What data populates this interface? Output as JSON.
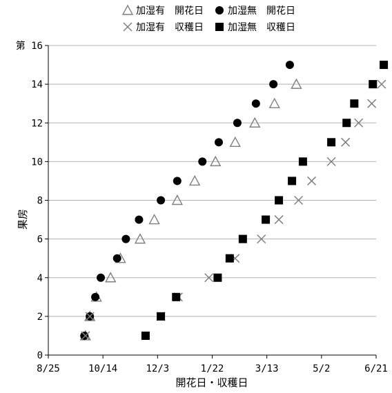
{
  "chart_data": {
    "type": "scatter",
    "title": "",
    "xlabel": "開花日・収穫日",
    "ylabel": "果房",
    "y_top_prefix": "第",
    "xticks": [
      "8/25",
      "10/14",
      "12/3",
      "1/22",
      "3/13",
      "5/2",
      "6/21"
    ],
    "xtick_days": [
      0,
      50,
      100,
      150,
      200,
      250,
      300
    ],
    "yticks": [
      0,
      2,
      4,
      6,
      8,
      10,
      12,
      14,
      16
    ],
    "xlim_days": [
      0,
      300
    ],
    "ylim": [
      0,
      16
    ],
    "x_unit": "days since 8/25",
    "grid": "horizontal",
    "legend_position": "top",
    "series": [
      {
        "name": "加湿有　開花日",
        "marker": "triangle-open",
        "color": "#7f7f7f",
        "points": [
          [
            34,
            1
          ],
          [
            38,
            2
          ],
          [
            44,
            3
          ],
          [
            57,
            4
          ],
          [
            66,
            5
          ],
          [
            84,
            6
          ],
          [
            97,
            7
          ],
          [
            118,
            8
          ],
          [
            134,
            9
          ],
          [
            153,
            10
          ],
          [
            171,
            11
          ],
          [
            189,
            12
          ],
          [
            207,
            13
          ],
          [
            227,
            14
          ]
        ]
      },
      {
        "name": "加湿無　開花日",
        "marker": "circle",
        "color": "#000000",
        "points": [
          [
            33,
            1
          ],
          [
            38,
            2
          ],
          [
            43,
            3
          ],
          [
            48,
            4
          ],
          [
            63,
            5
          ],
          [
            71,
            6
          ],
          [
            83,
            7
          ],
          [
            103,
            8
          ],
          [
            118,
            9
          ],
          [
            141,
            10
          ],
          [
            156,
            11
          ],
          [
            173,
            12
          ],
          [
            190,
            13
          ],
          [
            206,
            14
          ],
          [
            221,
            15
          ]
        ]
      },
      {
        "name": "加湿有　収穫日",
        "marker": "x",
        "color": "#7f7f7f",
        "points": [
          [
            34,
            1
          ],
          [
            38,
            2
          ],
          [
            103,
            2
          ],
          [
            119,
            3
          ],
          [
            147,
            4
          ],
          [
            171,
            5
          ],
          [
            195,
            6
          ],
          [
            211,
            7
          ],
          [
            229,
            8
          ],
          [
            241,
            9
          ],
          [
            259,
            10
          ],
          [
            272,
            11
          ],
          [
            284,
            12
          ],
          [
            296,
            13
          ],
          [
            305,
            14
          ]
        ]
      },
      {
        "name": "加湿無　収穫日",
        "marker": "square",
        "color": "#000000",
        "points": [
          [
            89,
            1
          ],
          [
            103,
            2
          ],
          [
            117,
            3
          ],
          [
            155,
            4
          ],
          [
            166,
            5
          ],
          [
            178,
            6
          ],
          [
            199,
            7
          ],
          [
            211,
            8
          ],
          [
            223,
            9
          ],
          [
            233,
            10
          ],
          [
            259,
            11
          ],
          [
            273,
            12
          ],
          [
            280,
            13
          ],
          [
            297,
            14
          ],
          [
            307,
            15
          ]
        ]
      }
    ]
  }
}
